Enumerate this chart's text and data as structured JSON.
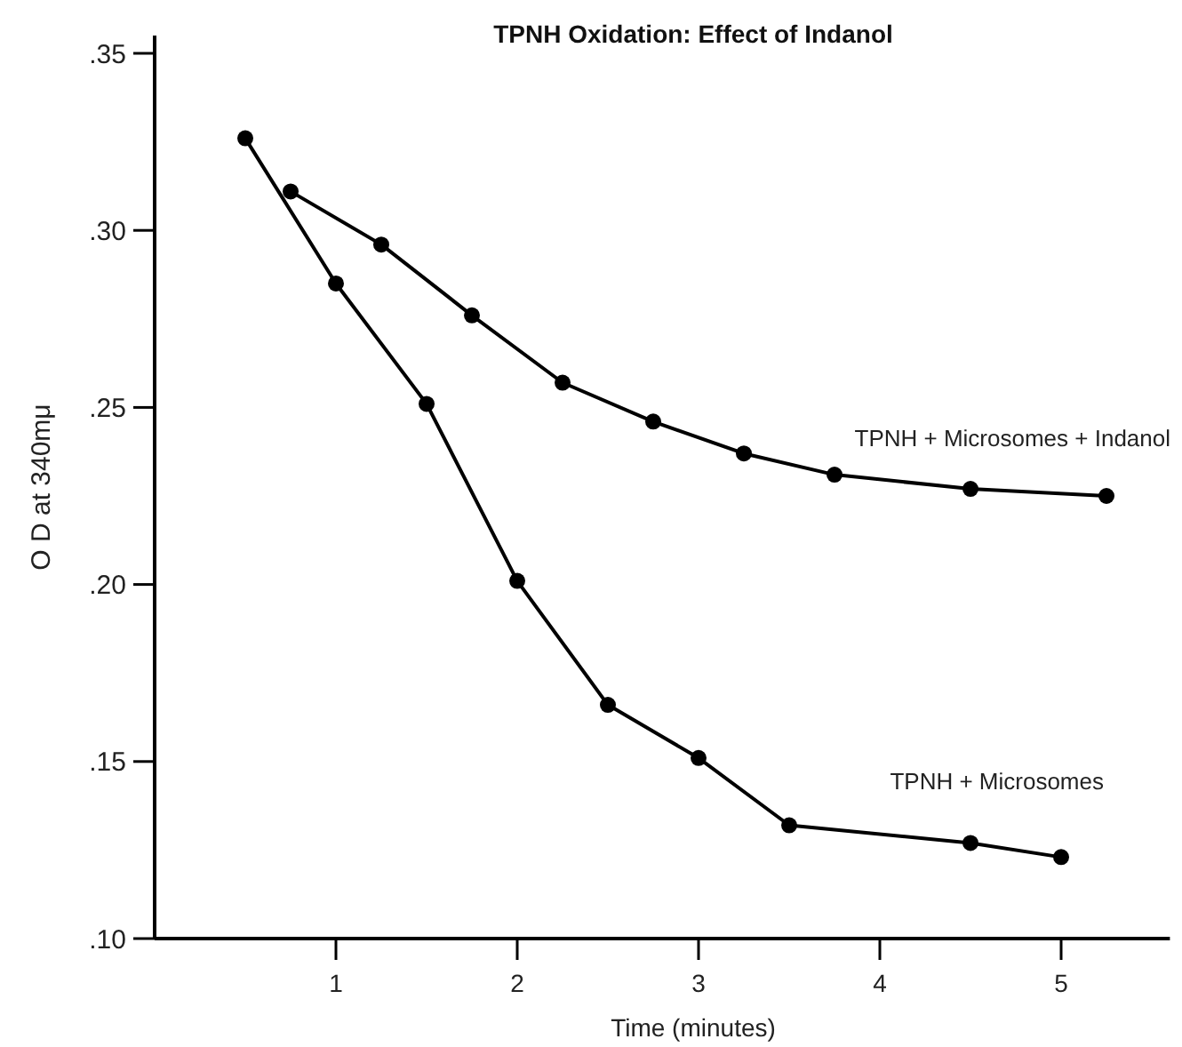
{
  "chart_data": {
    "type": "line",
    "title": "TPNH Oxidation: Effect of Indanol",
    "xlabel": "Time (minutes)",
    "ylabel": "O D at 340mμ",
    "xlim": [
      0,
      5.6
    ],
    "xticks": [
      1,
      2,
      3,
      4,
      5
    ],
    "ylim": [
      0.1,
      0.355
    ],
    "yticks": [
      {
        "value": 0.1,
        "label": ".10"
      },
      {
        "value": 0.15,
        "label": ".15"
      },
      {
        "value": 0.2,
        "label": ".20"
      },
      {
        "value": 0.25,
        "label": ".25"
      },
      {
        "value": 0.3,
        "label": ".30"
      },
      {
        "value": 0.35,
        "label": ".35"
      }
    ],
    "grid": false,
    "marker": "circle",
    "line_style": "solid",
    "series": [
      {
        "name": "TPNH + Microsomes",
        "color": "#000000",
        "x": [
          0.5,
          1,
          1.5,
          2,
          2.5,
          3,
          3.5,
          4.5,
          5
        ],
        "values": [
          0.326,
          0.285,
          0.251,
          0.201,
          0.166,
          0.151,
          0.132,
          0.127,
          0.123
        ]
      },
      {
        "name": "TPNH + Microsomes + Indanol",
        "color": "#000000",
        "x": [
          0.75,
          1.25,
          1.75,
          2.25,
          2.75,
          3.25,
          3.75,
          4.5,
          5.25
        ],
        "values": [
          0.311,
          0.296,
          0.276,
          0.257,
          0.246,
          0.237,
          0.231,
          0.227,
          0.225
        ]
      }
    ]
  }
}
